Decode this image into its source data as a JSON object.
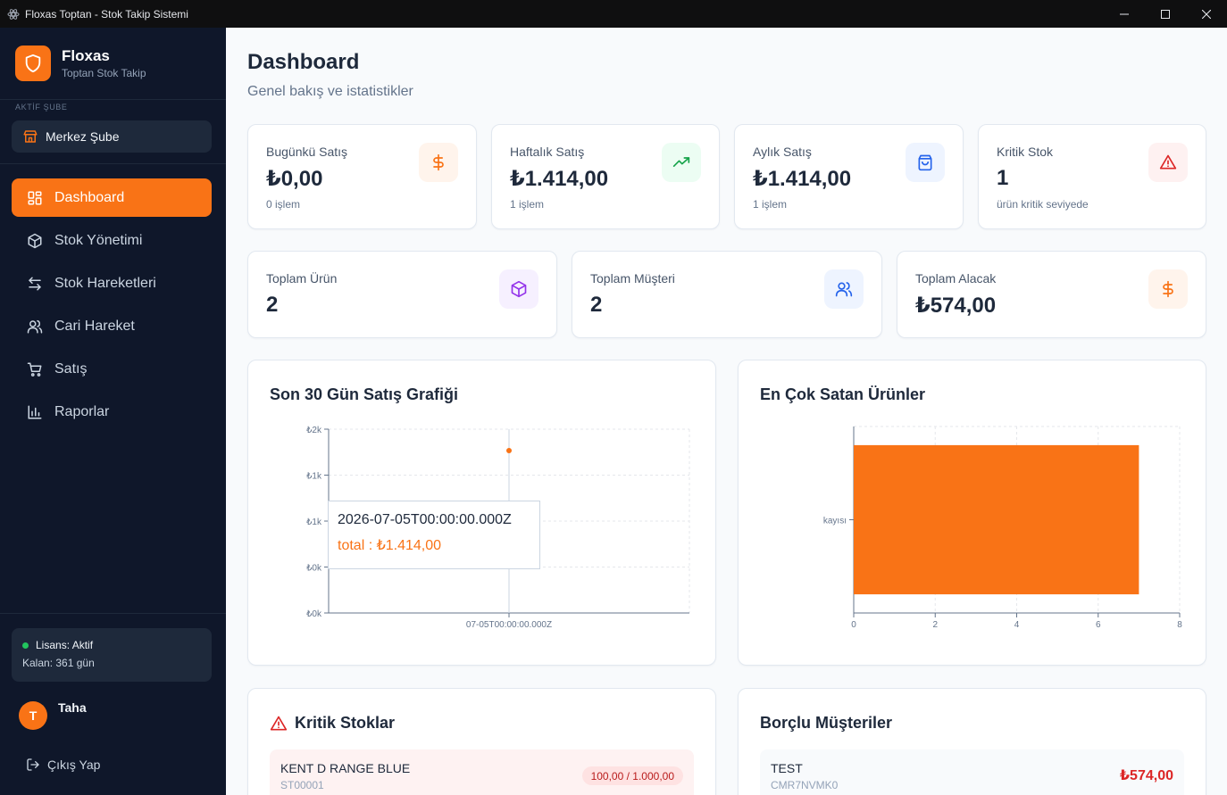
{
  "window": {
    "title": "Floxas Toptan - Stok Takip Sistemi"
  },
  "sidebar": {
    "brand_name": "Floxas",
    "brand_sub": "Toptan Stok Takip",
    "branch_caption": "AKTİF ŞUBE",
    "branch_name": "Merkez Şube",
    "nav": [
      {
        "label": "Dashboard",
        "icon": "dashboard-icon",
        "active": true
      },
      {
        "label": "Stok Yönetimi",
        "icon": "box-icon"
      },
      {
        "label": "Stok Hareketleri",
        "icon": "transfer-arrows-icon"
      },
      {
        "label": "Cari Hareket",
        "icon": "users-icon"
      },
      {
        "label": "Satış",
        "icon": "cart-icon"
      },
      {
        "label": "Raporlar",
        "icon": "bar-chart-icon"
      }
    ],
    "license_status": "Lisans: Aktif",
    "license_remaining": "Kalan: 361 gün",
    "user_initial": "T",
    "user_name": "Taha",
    "logout_label": "Çıkış Yap"
  },
  "header": {
    "title": "Dashboard",
    "subtitle": "Genel bakış ve istatistikler"
  },
  "stats_top": [
    {
      "label": "Bugünkü Satış",
      "value": "₺0,00",
      "note": "0 işlem",
      "icon": "dollar-icon",
      "color": "#f97316",
      "bg": "#fff4ec"
    },
    {
      "label": "Haftalık Satış",
      "value": "₺1.414,00",
      "note": "1 işlem",
      "icon": "trending-up-icon",
      "color": "#16a34a",
      "bg": "#ecfdf3"
    },
    {
      "label": "Aylık Satış",
      "value": "₺1.414,00",
      "note": "1 işlem",
      "icon": "shopping-bag-icon",
      "color": "#2563eb",
      "bg": "#eef4ff"
    },
    {
      "label": "Kritik Stok",
      "value": "1",
      "note": "ürün kritik seviyede",
      "icon": "alert-triangle-icon",
      "color": "#dc2626",
      "bg": "#fef1f1"
    }
  ],
  "stats_bottom": [
    {
      "label": "Toplam Ürün",
      "value": "2",
      "icon": "box-icon",
      "color": "#9333ea",
      "bg": "#f6f0ff"
    },
    {
      "label": "Toplam Müşteri",
      "value": "2",
      "icon": "users-icon",
      "color": "#2563eb",
      "bg": "#eef4ff"
    },
    {
      "label": "Toplam Alacak",
      "value": "₺574,00",
      "icon": "dollar-icon",
      "color": "#f97316",
      "bg": "#fff4ec"
    }
  ],
  "sales_panel": {
    "title": "Son 30 Gün Satış Grafiği",
    "tooltip_label": "2026-07-05T00:00:00.000Z",
    "tooltip_value": "total : ₺1.414,00"
  },
  "top_panel": {
    "title": "En Çok Satan Ürünler"
  },
  "critical_panel": {
    "title": "Kritik Stoklar",
    "items": [
      {
        "name": "KENT D RANGE BLUE",
        "code": "ST00001",
        "level": "100,00 / 1.000,00"
      }
    ]
  },
  "debtors_panel": {
    "title": "Borçlu Müşteriler",
    "items": [
      {
        "name": "TEST",
        "code": "CMR7NVMK0",
        "amount": "₺574,00"
      }
    ]
  },
  "chart_data": [
    {
      "type": "line",
      "title": "Son 30 Gün Satış Grafiği",
      "x": [
        "2026-07-05T00:00:00.000Z"
      ],
      "x_tick_labels": [
        "07-05T00:00:00.000Z"
      ],
      "series": [
        {
          "values": [
            1414
          ]
        }
      ],
      "y_tick_labels": [
        "₺2k",
        "₺1k",
        "₺1k",
        "₺0k",
        "₺0k"
      ],
      "ylim": [
        0,
        1600
      ],
      "grid": true,
      "color": "#f97316"
    },
    {
      "type": "bar",
      "orientation": "horizontal",
      "title": "En Çok Satan Ürünler",
      "categories": [
        "kayısı"
      ],
      "values": [
        7
      ],
      "xlim": [
        0,
        8
      ],
      "x_tick_labels": [
        "0",
        "2",
        "4",
        "6",
        "8"
      ],
      "grid": true,
      "color": "#f97316"
    }
  ]
}
